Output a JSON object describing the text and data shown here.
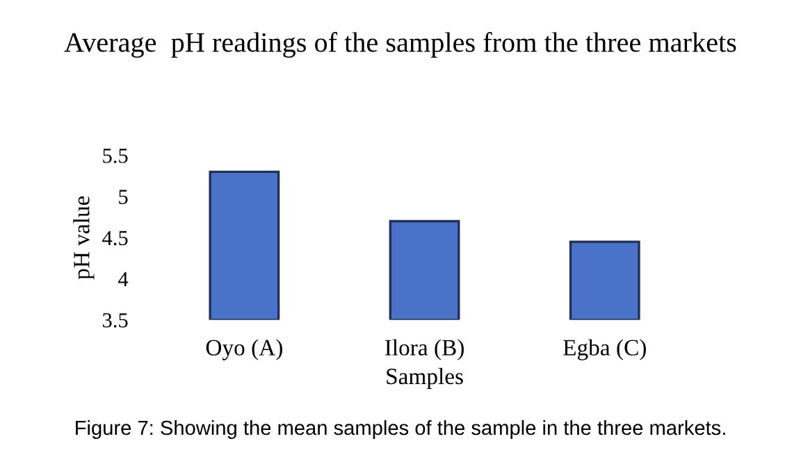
{
  "chart_data": {
    "type": "bar",
    "title": "Average  pH readings of the samples from the three markets",
    "xlabel": "Samples",
    "ylabel": "pH value",
    "categories": [
      "Oyo (A)",
      "Ilora (B)",
      "Egba (C)"
    ],
    "values": [
      5.3,
      4.7,
      4.45
    ],
    "color": "#4a72c9",
    "ylim": [
      3.5,
      5.5
    ],
    "yticks": [
      3.5,
      4,
      4.5,
      5,
      5.5
    ],
    "grid": false,
    "annotations": [
      "Figure 7: Showing the mean samples of the sample in the three markets."
    ]
  }
}
